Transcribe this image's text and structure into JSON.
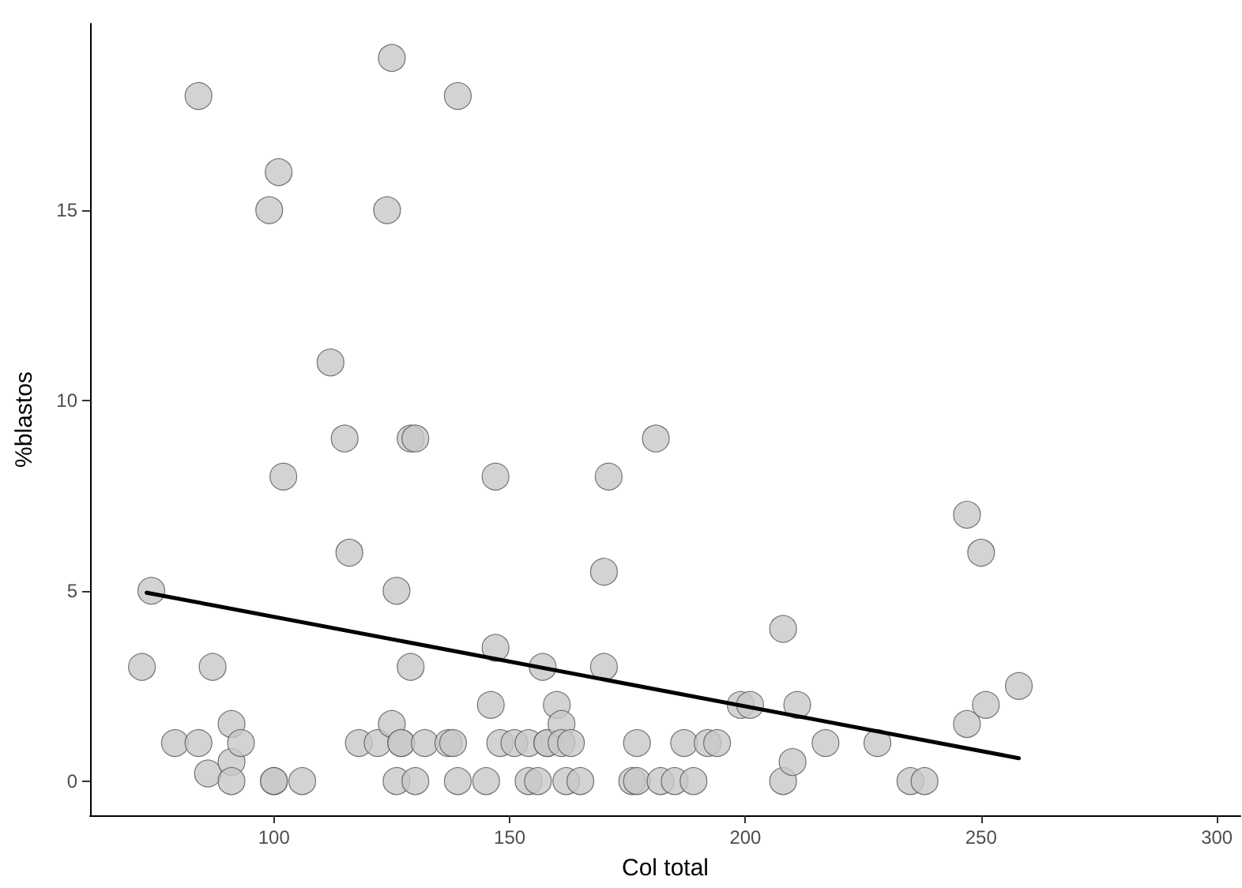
{
  "chart_data": {
    "type": "scatter",
    "xlabel": "Col total",
    "ylabel": "%blastos",
    "xlim": [
      61,
      305
    ],
    "ylim": [
      -0.9,
      19.9
    ],
    "xticks": [
      100,
      150,
      200,
      250,
      300
    ],
    "yticks": [
      0,
      5,
      10,
      15
    ],
    "grid": false,
    "marker": "circle",
    "series": [
      {
        "color": "#c8c8c8",
        "x": [
          72,
          74,
          79,
          84,
          84,
          86,
          87,
          91,
          91,
          91,
          93,
          99,
          100,
          100,
          101,
          102,
          106,
          112,
          115,
          116,
          118,
          122,
          124,
          125,
          125,
          126,
          126,
          127,
          127,
          129,
          129,
          130,
          130,
          132,
          137,
          138,
          139,
          139,
          145,
          146,
          147,
          147,
          148,
          151,
          154,
          154,
          156,
          157,
          158,
          158,
          160,
          161,
          161,
          162,
          163,
          165,
          170,
          170,
          171,
          176,
          177,
          177,
          181,
          182,
          185,
          187,
          189,
          192,
          194,
          199,
          201,
          208,
          208,
          210,
          211,
          217,
          228,
          235,
          238,
          247,
          247,
          250,
          251,
          258
        ],
        "values": [
          3,
          5,
          1,
          1,
          18,
          0.2,
          3,
          1.5,
          0.5,
          0,
          1,
          15,
          0,
          0,
          16,
          8,
          0,
          11,
          9,
          6,
          1,
          1,
          15,
          19,
          1.5,
          5,
          0,
          1,
          1,
          3,
          9,
          9,
          0,
          1,
          1,
          1,
          18,
          0,
          0,
          2,
          8,
          3.5,
          1,
          1,
          0,
          1,
          0,
          3,
          1,
          1,
          2,
          1.5,
          1,
          0,
          1,
          0,
          5.5,
          3,
          8,
          0,
          1,
          0,
          9,
          0,
          0,
          1,
          0,
          1,
          1,
          2,
          2,
          4,
          0,
          0.5,
          2,
          1,
          1,
          0,
          0,
          7,
          1.5,
          6,
          2,
          2.5
        ]
      },
      {
        "type": "line",
        "color": "#000000",
        "marker": "none",
        "line_style": "solid",
        "x": [
          73,
          258
        ],
        "values": [
          4.95,
          0.6
        ]
      }
    ]
  }
}
